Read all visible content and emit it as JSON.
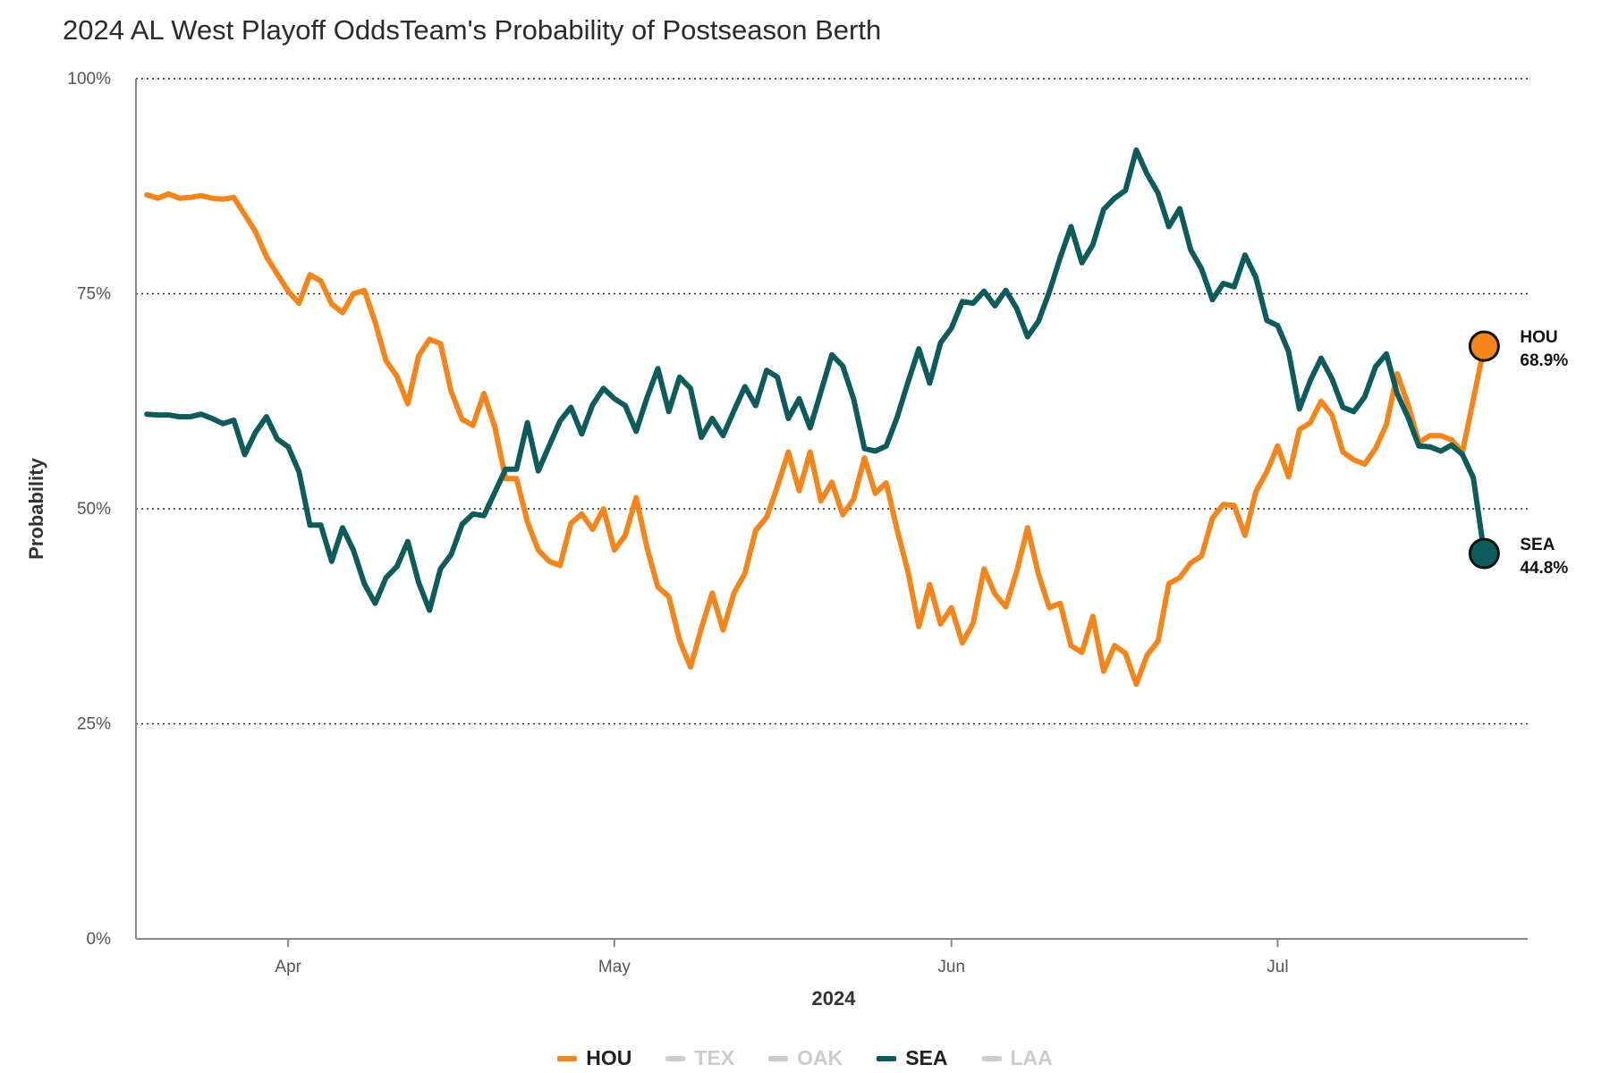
{
  "chart_data": {
    "type": "line",
    "title": "2024 AL West Playoff OddsTeam's Probability of Postseason Berth",
    "xlabel": "2024",
    "ylabel": "Probability",
    "ylim": [
      0,
      1
    ],
    "x_range": [
      "2024-03-18",
      "2024-07-24"
    ],
    "y_ticks": [
      {
        "value": 0,
        "label": "0%"
      },
      {
        "value": 0.25,
        "label": "25%"
      },
      {
        "value": 0.5,
        "label": "50%"
      },
      {
        "value": 0.75,
        "label": "75%"
      },
      {
        "value": 1,
        "label": "100%"
      }
    ],
    "x_ticks": [
      {
        "date": "2024-04-01",
        "label": "Apr"
      },
      {
        "date": "2024-05-01",
        "label": "May"
      },
      {
        "date": "2024-06-01",
        "label": "Jun"
      },
      {
        "date": "2024-07-01",
        "label": "Jul"
      }
    ],
    "grid": "horizontal dotted",
    "legend_position": "bottom-center",
    "legend": [
      {
        "name": "HOU",
        "color": "#f58518",
        "active": true
      },
      {
        "name": "TEX",
        "color": "#cccccc",
        "active": false
      },
      {
        "name": "OAK",
        "color": "#cccccc",
        "active": false
      },
      {
        "name": "SEA",
        "color": "#0c5c5c",
        "active": true
      },
      {
        "name": "LAA",
        "color": "#cccccc",
        "active": false
      }
    ],
    "series": [
      {
        "name": "HOU",
        "color": "#f58518",
        "end_value": 0.689,
        "end_label_name": "HOU",
        "end_label_value": "68.9%",
        "points": [
          [
            "2024-03-19",
            0.865
          ],
          [
            "2024-03-20",
            0.861
          ],
          [
            "2024-03-21",
            0.866
          ],
          [
            "2024-03-22",
            0.861
          ],
          [
            "2024-03-23",
            0.862
          ],
          [
            "2024-03-24",
            0.864
          ],
          [
            "2024-03-25",
            0.861
          ],
          [
            "2024-03-26",
            0.86
          ],
          [
            "2024-03-27",
            0.862
          ],
          [
            "2024-03-28",
            0.842
          ],
          [
            "2024-03-29",
            0.822
          ],
          [
            "2024-03-30",
            0.793
          ],
          [
            "2024-03-31",
            0.773
          ],
          [
            "2024-04-01",
            0.753
          ],
          [
            "2024-04-02",
            0.739
          ],
          [
            "2024-04-03",
            0.772
          ],
          [
            "2024-04-04",
            0.765
          ],
          [
            "2024-04-05",
            0.738
          ],
          [
            "2024-04-06",
            0.728
          ],
          [
            "2024-04-07",
            0.75
          ],
          [
            "2024-04-08",
            0.754
          ],
          [
            "2024-04-09",
            0.717
          ],
          [
            "2024-04-10",
            0.672
          ],
          [
            "2024-04-11",
            0.654
          ],
          [
            "2024-04-12",
            0.622
          ],
          [
            "2024-04-13",
            0.678
          ],
          [
            "2024-04-14",
            0.697
          ],
          [
            "2024-04-15",
            0.692
          ],
          [
            "2024-04-16",
            0.636
          ],
          [
            "2024-04-17",
            0.604
          ],
          [
            "2024-04-18",
            0.597
          ],
          [
            "2024-04-19",
            0.634
          ],
          [
            "2024-04-20",
            0.595
          ],
          [
            "2024-04-21",
            0.535
          ],
          [
            "2024-04-22",
            0.535
          ],
          [
            "2024-04-23",
            0.485
          ],
          [
            "2024-04-24",
            0.452
          ],
          [
            "2024-04-25",
            0.439
          ],
          [
            "2024-04-26",
            0.434
          ],
          [
            "2024-04-27",
            0.483
          ],
          [
            "2024-04-28",
            0.494
          ],
          [
            "2024-04-29",
            0.476
          ],
          [
            "2024-04-30",
            0.5
          ],
          [
            "2024-05-01",
            0.452
          ],
          [
            "2024-05-02",
            0.469
          ],
          [
            "2024-05-03",
            0.513
          ],
          [
            "2024-05-04",
            0.455
          ],
          [
            "2024-05-05",
            0.409
          ],
          [
            "2024-05-06",
            0.398
          ],
          [
            "2024-05-07",
            0.347
          ],
          [
            "2024-05-08",
            0.316
          ],
          [
            "2024-05-09",
            0.361
          ],
          [
            "2024-05-10",
            0.402
          ],
          [
            "2024-05-11",
            0.359
          ],
          [
            "2024-05-12",
            0.402
          ],
          [
            "2024-05-13",
            0.425
          ],
          [
            "2024-05-14",
            0.475
          ],
          [
            "2024-05-15",
            0.49
          ],
          [
            "2024-05-16",
            0.526
          ],
          [
            "2024-05-17",
            0.566
          ],
          [
            "2024-05-18",
            0.521
          ],
          [
            "2024-05-19",
            0.566
          ],
          [
            "2024-05-20",
            0.509
          ],
          [
            "2024-05-21",
            0.531
          ],
          [
            "2024-05-22",
            0.493
          ],
          [
            "2024-05-23",
            0.511
          ],
          [
            "2024-05-24",
            0.559
          ],
          [
            "2024-05-25",
            0.518
          ],
          [
            "2024-05-26",
            0.53
          ],
          [
            "2024-05-27",
            0.476
          ],
          [
            "2024-05-28",
            0.427
          ],
          [
            "2024-05-29",
            0.363
          ],
          [
            "2024-05-30",
            0.412
          ],
          [
            "2024-05-31",
            0.366
          ],
          [
            "2024-06-01",
            0.385
          ],
          [
            "2024-06-02",
            0.344
          ],
          [
            "2024-06-03",
            0.367
          ],
          [
            "2024-06-04",
            0.43
          ],
          [
            "2024-06-05",
            0.401
          ],
          [
            "2024-06-06",
            0.386
          ],
          [
            "2024-06-07",
            0.427
          ],
          [
            "2024-06-08",
            0.478
          ],
          [
            "2024-06-09",
            0.424
          ],
          [
            "2024-06-10",
            0.385
          ],
          [
            "2024-06-11",
            0.39
          ],
          [
            "2024-06-12",
            0.341
          ],
          [
            "2024-06-13",
            0.333
          ],
          [
            "2024-06-14",
            0.375
          ],
          [
            "2024-06-15",
            0.311
          ],
          [
            "2024-06-16",
            0.341
          ],
          [
            "2024-06-17",
            0.332
          ],
          [
            "2024-06-18",
            0.296
          ],
          [
            "2024-06-19",
            0.33
          ],
          [
            "2024-06-20",
            0.346
          ],
          [
            "2024-06-21",
            0.413
          ],
          [
            "2024-06-22",
            0.42
          ],
          [
            "2024-06-23",
            0.437
          ],
          [
            "2024-06-24",
            0.445
          ],
          [
            "2024-06-25",
            0.489
          ],
          [
            "2024-06-26",
            0.505
          ],
          [
            "2024-06-27",
            0.504
          ],
          [
            "2024-06-28",
            0.469
          ],
          [
            "2024-06-29",
            0.52
          ],
          [
            "2024-06-30",
            0.543
          ],
          [
            "2024-07-01",
            0.573
          ],
          [
            "2024-07-02",
            0.537
          ],
          [
            "2024-07-03",
            0.592
          ],
          [
            "2024-07-04",
            0.6
          ],
          [
            "2024-07-05",
            0.625
          ],
          [
            "2024-07-06",
            0.609
          ],
          [
            "2024-07-07",
            0.566
          ],
          [
            "2024-07-08",
            0.557
          ],
          [
            "2024-07-09",
            0.552
          ],
          [
            "2024-07-10",
            0.57
          ],
          [
            "2024-07-11",
            0.598
          ],
          [
            "2024-07-12",
            0.657
          ],
          [
            "2024-07-13",
            0.621
          ],
          [
            "2024-07-14",
            0.577
          ],
          [
            "2024-07-15",
            0.585
          ],
          [
            "2024-07-16",
            0.585
          ],
          [
            "2024-07-17",
            0.58
          ],
          [
            "2024-07-18",
            0.566
          ],
          [
            "2024-07-19",
            0.627
          ],
          [
            "2024-07-20",
            0.689
          ]
        ]
      },
      {
        "name": "SEA",
        "color": "#0c5c5c",
        "end_value": 0.448,
        "end_label_name": "SEA",
        "end_label_value": "44.8%",
        "points": [
          [
            "2024-03-19",
            0.61
          ],
          [
            "2024-03-20",
            0.609
          ],
          [
            "2024-03-21",
            0.609
          ],
          [
            "2024-03-22",
            0.607
          ],
          [
            "2024-03-23",
            0.607
          ],
          [
            "2024-03-24",
            0.61
          ],
          [
            "2024-03-25",
            0.605
          ],
          [
            "2024-03-26",
            0.599
          ],
          [
            "2024-03-27",
            0.603
          ],
          [
            "2024-03-28",
            0.563
          ],
          [
            "2024-03-29",
            0.589
          ],
          [
            "2024-03-30",
            0.607
          ],
          [
            "2024-03-31",
            0.581
          ],
          [
            "2024-04-01",
            0.572
          ],
          [
            "2024-04-02",
            0.543
          ],
          [
            "2024-04-03",
            0.481
          ],
          [
            "2024-04-04",
            0.481
          ],
          [
            "2024-04-05",
            0.439
          ],
          [
            "2024-04-06",
            0.478
          ],
          [
            "2024-04-07",
            0.452
          ],
          [
            "2024-04-08",
            0.413
          ],
          [
            "2024-04-09",
            0.39
          ],
          [
            "2024-04-10",
            0.42
          ],
          [
            "2024-04-11",
            0.433
          ],
          [
            "2024-04-12",
            0.462
          ],
          [
            "2024-04-13",
            0.414
          ],
          [
            "2024-04-14",
            0.382
          ],
          [
            "2024-04-15",
            0.43
          ],
          [
            "2024-04-16",
            0.447
          ],
          [
            "2024-04-17",
            0.482
          ],
          [
            "2024-04-18",
            0.494
          ],
          [
            "2024-04-19",
            0.492
          ],
          [
            "2024-04-20",
            0.519
          ],
          [
            "2024-04-21",
            0.546
          ],
          [
            "2024-04-22",
            0.546
          ],
          [
            "2024-04-23",
            0.6
          ],
          [
            "2024-04-24",
            0.544
          ],
          [
            "2024-04-25",
            0.573
          ],
          [
            "2024-04-26",
            0.602
          ],
          [
            "2024-04-27",
            0.618
          ],
          [
            "2024-04-28",
            0.587
          ],
          [
            "2024-04-29",
            0.621
          ],
          [
            "2024-04-30",
            0.64
          ],
          [
            "2024-05-01",
            0.628
          ],
          [
            "2024-05-02",
            0.62
          ],
          [
            "2024-05-03",
            0.59
          ],
          [
            "2024-05-04",
            0.629
          ],
          [
            "2024-05-05",
            0.663
          ],
          [
            "2024-05-06",
            0.613
          ],
          [
            "2024-05-07",
            0.653
          ],
          [
            "2024-05-08",
            0.64
          ],
          [
            "2024-05-09",
            0.583
          ],
          [
            "2024-05-10",
            0.605
          ],
          [
            "2024-05-11",
            0.585
          ],
          [
            "2024-05-12",
            0.614
          ],
          [
            "2024-05-13",
            0.642
          ],
          [
            "2024-05-14",
            0.62
          ],
          [
            "2024-05-15",
            0.661
          ],
          [
            "2024-05-16",
            0.653
          ],
          [
            "2024-05-17",
            0.605
          ],
          [
            "2024-05-18",
            0.628
          ],
          [
            "2024-05-19",
            0.594
          ],
          [
            "2024-05-20",
            0.636
          ],
          [
            "2024-05-21",
            0.679
          ],
          [
            "2024-05-22",
            0.666
          ],
          [
            "2024-05-23",
            0.628
          ],
          [
            "2024-05-24",
            0.57
          ],
          [
            "2024-05-25",
            0.567
          ],
          [
            "2024-05-26",
            0.573
          ],
          [
            "2024-05-27",
            0.606
          ],
          [
            "2024-05-28",
            0.647
          ],
          [
            "2024-05-29",
            0.686
          ],
          [
            "2024-05-30",
            0.646
          ],
          [
            "2024-05-31",
            0.693
          ],
          [
            "2024-06-01",
            0.71
          ],
          [
            "2024-06-02",
            0.741
          ],
          [
            "2024-06-03",
            0.739
          ],
          [
            "2024-06-04",
            0.753
          ],
          [
            "2024-06-05",
            0.736
          ],
          [
            "2024-06-06",
            0.754
          ],
          [
            "2024-06-07",
            0.733
          ],
          [
            "2024-06-08",
            0.7
          ],
          [
            "2024-06-09",
            0.718
          ],
          [
            "2024-06-10",
            0.752
          ],
          [
            "2024-06-11",
            0.792
          ],
          [
            "2024-06-12",
            0.828
          ],
          [
            "2024-06-13",
            0.786
          ],
          [
            "2024-06-14",
            0.807
          ],
          [
            "2024-06-15",
            0.848
          ],
          [
            "2024-06-16",
            0.861
          ],
          [
            "2024-06-17",
            0.87
          ],
          [
            "2024-06-18",
            0.917
          ],
          [
            "2024-06-19",
            0.889
          ],
          [
            "2024-06-20",
            0.867
          ],
          [
            "2024-06-21",
            0.828
          ],
          [
            "2024-06-22",
            0.849
          ],
          [
            "2024-06-23",
            0.801
          ],
          [
            "2024-06-24",
            0.779
          ],
          [
            "2024-06-25",
            0.743
          ],
          [
            "2024-06-26",
            0.762
          ],
          [
            "2024-06-27",
            0.758
          ],
          [
            "2024-06-28",
            0.795
          ],
          [
            "2024-06-29",
            0.769
          ],
          [
            "2024-06-30",
            0.719
          ],
          [
            "2024-07-01",
            0.713
          ],
          [
            "2024-07-02",
            0.683
          ],
          [
            "2024-07-03",
            0.616
          ],
          [
            "2024-07-04",
            0.649
          ],
          [
            "2024-07-05",
            0.675
          ],
          [
            "2024-07-06",
            0.651
          ],
          [
            "2024-07-07",
            0.618
          ],
          [
            "2024-07-08",
            0.613
          ],
          [
            "2024-07-09",
            0.63
          ],
          [
            "2024-07-10",
            0.665
          ],
          [
            "2024-07-11",
            0.68
          ],
          [
            "2024-07-12",
            0.634
          ],
          [
            "2024-07-13",
            0.606
          ],
          [
            "2024-07-14",
            0.573
          ],
          [
            "2024-07-15",
            0.572
          ],
          [
            "2024-07-16",
            0.567
          ],
          [
            "2024-07-17",
            0.574
          ],
          [
            "2024-07-18",
            0.563
          ],
          [
            "2024-07-19",
            0.536
          ],
          [
            "2024-07-20",
            0.448
          ]
        ]
      }
    ]
  }
}
